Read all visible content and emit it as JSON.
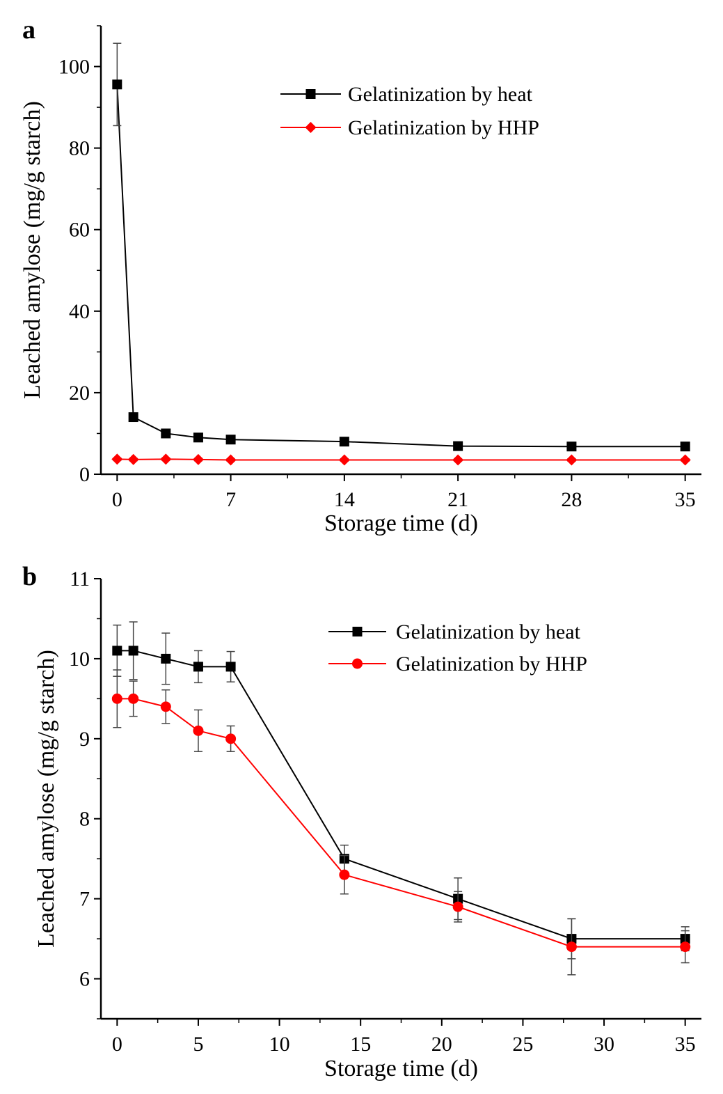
{
  "chart_data": [
    {
      "panel_label": "a",
      "type": "line",
      "xlabel": "Storage time (d)",
      "ylabel": "Leached amylose (mg/g starch)",
      "xlim": [
        -1,
        36
      ],
      "ylim": [
        0,
        110
      ],
      "xticks": [
        0,
        7,
        14,
        21,
        28,
        35
      ],
      "yticks": [
        0,
        20,
        40,
        60,
        80,
        100
      ],
      "grid": false,
      "legend_position": "top-right",
      "x": [
        0,
        1,
        3,
        5,
        7,
        14,
        21,
        28,
        35
      ],
      "series": [
        {
          "name": "Gelatinization by heat",
          "color": "#000000",
          "marker": "square",
          "values": [
            95.6,
            14.0,
            10.0,
            9.0,
            8.5,
            8.0,
            6.9,
            6.8,
            6.8
          ],
          "errors": [
            10.1,
            0.6,
            0.5,
            0.5,
            0.4,
            0.4,
            0.3,
            0.3,
            0.3
          ]
        },
        {
          "name": "Gelatinization by HHP",
          "color": "#ff0000",
          "marker": "diamond",
          "values": [
            3.7,
            3.6,
            3.7,
            3.6,
            3.5,
            3.5,
            3.5,
            3.5,
            3.5
          ],
          "errors": [
            0.3,
            0.3,
            0.3,
            0.3,
            0.3,
            0.3,
            0.3,
            0.3,
            0.3
          ]
        }
      ]
    },
    {
      "panel_label": "b",
      "type": "line",
      "xlabel": "Storage time (d)",
      "ylabel": "Leached amylose (mg/g starch)",
      "xlim": [
        -1,
        36
      ],
      "ylim": [
        5.5,
        11
      ],
      "xticks": [
        0,
        5,
        10,
        15,
        20,
        25,
        30,
        35
      ],
      "yticks": [
        6,
        7,
        8,
        9,
        10,
        11
      ],
      "grid": false,
      "legend_position": "top-right",
      "x": [
        0,
        1,
        3,
        5,
        7,
        14,
        21,
        28,
        35
      ],
      "series": [
        {
          "name": "Gelatinization by heat",
          "color": "#000000",
          "marker": "square",
          "values": [
            10.1,
            10.1,
            10.0,
            9.9,
            9.9,
            7.5,
            7.0,
            6.5,
            6.5
          ],
          "errors": [
            0.32,
            0.36,
            0.32,
            0.2,
            0.19,
            0.17,
            0.26,
            0.25,
            0.15
          ]
        },
        {
          "name": "Gelatinization by HHP",
          "color": "#ff0000",
          "marker": "circle",
          "values": [
            9.5,
            9.5,
            9.4,
            9.1,
            9.0,
            7.3,
            6.9,
            6.4,
            6.4
          ],
          "errors": [
            0.36,
            0.22,
            0.21,
            0.26,
            0.16,
            0.24,
            0.19,
            0.35,
            0.2
          ]
        }
      ]
    }
  ]
}
